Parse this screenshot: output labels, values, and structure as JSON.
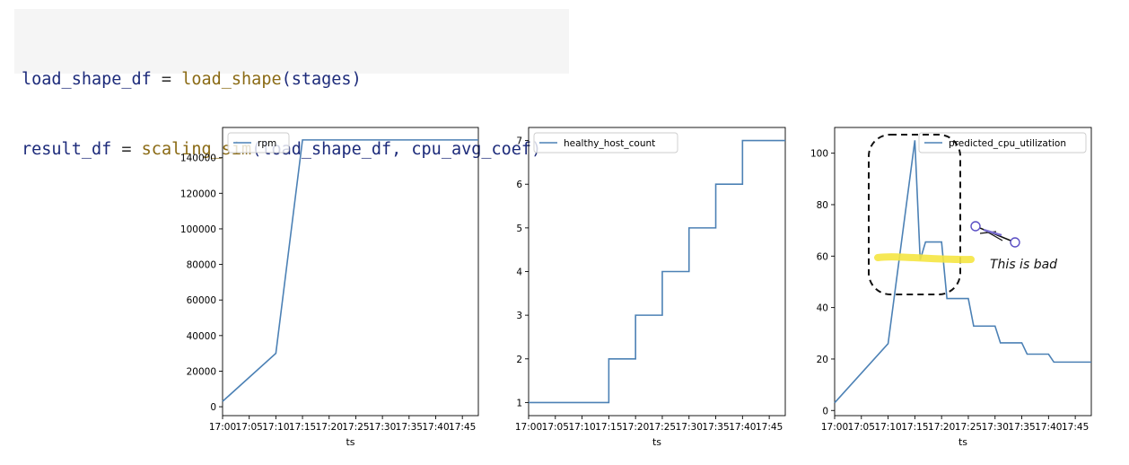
{
  "code": {
    "line1": {
      "var": "load_shape_df",
      "op": " = ",
      "fn": "load_shape",
      "args": "(stages)"
    },
    "line2": {
      "var": "result_df",
      "op": " = ",
      "fn": "scaling_sim",
      "args": "(load_shape_df, cpu_avg_coef)"
    }
  },
  "annotation": {
    "text": "This is bad",
    "highlight_color": "#f5e642"
  },
  "colors": {
    "series": "#4c81b5",
    "axis": "#000000",
    "code_bg": "#f5f5f5"
  },
  "chart_data": [
    {
      "type": "line",
      "x": [
        "17:00",
        "17:10",
        "17:15",
        "17:48"
      ],
      "x_minutes": [
        0,
        10,
        15,
        48
      ],
      "series": [
        {
          "name": "rpm",
          "values": [
            3000,
            30000,
            150000,
            150000
          ]
        }
      ],
      "x_ticks": [
        "17:00",
        "17:05",
        "17:10",
        "17:15",
        "17:20",
        "17:25",
        "17:30",
        "17:35",
        "17:40",
        "17:45"
      ],
      "y_ticks": [
        0,
        20000,
        40000,
        60000,
        80000,
        100000,
        120000,
        140000
      ],
      "xlabel": "ts",
      "ylabel": "",
      "ylim": [
        -5000,
        157000
      ],
      "xlim_minutes": [
        0,
        48
      ],
      "legend": "top-left"
    },
    {
      "type": "line",
      "x_minutes": [
        0,
        15,
        15,
        20,
        20,
        25,
        25,
        30,
        30,
        35,
        35,
        40,
        40,
        48
      ],
      "series": [
        {
          "name": "healthy_host_count",
          "values": [
            1,
            1,
            2,
            2,
            3,
            3,
            4,
            4,
            5,
            5,
            6,
            6,
            7,
            7
          ]
        }
      ],
      "x_ticks": [
        "17:00",
        "17:05",
        "17:10",
        "17:15",
        "17:20",
        "17:25",
        "17:30",
        "17:35",
        "17:40",
        "17:45"
      ],
      "y_ticks": [
        1,
        2,
        3,
        4,
        5,
        6,
        7
      ],
      "xlabel": "ts",
      "ylabel": "",
      "ylim": [
        0.7,
        7.3
      ],
      "xlim_minutes": [
        0,
        48
      ],
      "legend": "top-left"
    },
    {
      "type": "line",
      "x_minutes": [
        0,
        10,
        15,
        16,
        17,
        20,
        21,
        25,
        26,
        30,
        31,
        35,
        36,
        40,
        41,
        48
      ],
      "series": [
        {
          "name": "predicted_cpu_utilization",
          "values": [
            3,
            26,
            105,
            58.5,
            65.5,
            65.5,
            43.5,
            43.5,
            32.8,
            32.8,
            26.3,
            26.3,
            21.9,
            21.9,
            18.8,
            18.8
          ]
        }
      ],
      "x_ticks": [
        "17:00",
        "17:05",
        "17:10",
        "17:15",
        "17:20",
        "17:25",
        "17:30",
        "17:35",
        "17:40",
        "17:45"
      ],
      "y_ticks": [
        0,
        20,
        40,
        60,
        80,
        100
      ],
      "xlabel": "ts",
      "ylabel": "",
      "ylim": [
        -2,
        110
      ],
      "xlim_minutes": [
        0,
        48
      ],
      "legend": "top-right"
    }
  ]
}
